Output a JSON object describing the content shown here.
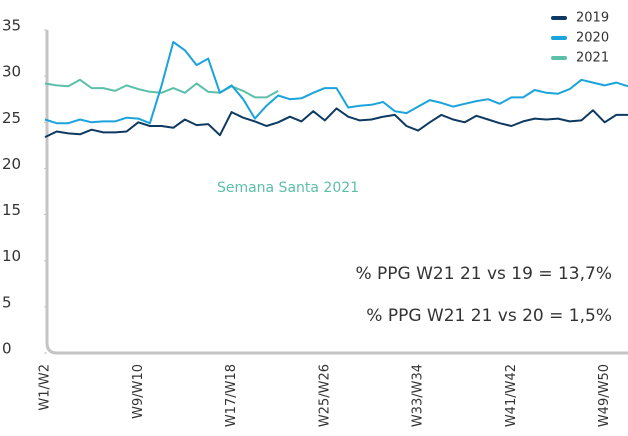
{
  "chart_data": {
    "type": "line",
    "categories": [
      "W1/W2",
      null,
      null,
      null,
      null,
      null,
      null,
      null,
      "W9/W10",
      null,
      null,
      null,
      null,
      null,
      null,
      null,
      "W17/W18",
      null,
      null,
      null,
      null,
      null,
      null,
      null,
      "W25/W26",
      null,
      null,
      null,
      null,
      null,
      null,
      null,
      "W33/W34",
      null,
      null,
      null,
      null,
      null,
      null,
      null,
      "W41/W42",
      null,
      null,
      null,
      null,
      null,
      null,
      null,
      "W49/W50",
      null,
      null
    ],
    "series": [
      {
        "name": "2019",
        "color": "#0e3a62",
        "values": [
          23.4,
          24,
          23.8,
          23.7,
          24.2,
          23.9,
          23.9,
          24,
          25,
          24.6,
          24.6,
          24.4,
          25.3,
          24.7,
          24.8,
          23.6,
          26.1,
          25.5,
          25.1,
          24.6,
          25,
          25.6,
          25.1,
          26.2,
          25.2,
          26.5,
          25.6,
          25.2,
          25.3,
          25.6,
          25.8,
          24.6,
          24.1,
          25,
          25.8,
          25.3,
          25,
          25.7,
          25.3,
          24.9,
          24.6,
          25.1,
          25.4,
          25.3,
          25.4,
          25.1,
          25.2,
          26.3,
          25,
          25.8,
          25.8
        ]
      },
      {
        "name": "2020",
        "color": "#1aa3dc",
        "values": [
          25.3,
          24.9,
          24.9,
          25.3,
          25,
          25.1,
          25.1,
          25.5,
          25.4,
          24.9,
          29,
          33.7,
          32.8,
          31.2,
          31.9,
          28.2,
          29,
          27.5,
          25.4,
          26.8,
          27.9,
          27.5,
          27.6,
          28.2,
          28.7,
          28.7,
          26.6,
          26.8,
          26.9,
          27.2,
          26.2,
          26,
          26.7,
          27.4,
          27.1,
          26.7,
          27,
          27.3,
          27.5,
          27,
          27.7,
          27.7,
          28.5,
          28.2,
          28.1,
          28.6,
          29.6,
          29.3,
          29,
          29.3,
          28.9
        ]
      },
      {
        "name": "2021",
        "color": "#5cbfa9",
        "values": [
          29.2,
          29,
          28.9,
          29.6,
          28.7,
          28.7,
          28.4,
          29,
          28.6,
          28.3,
          28.2,
          28.7,
          28.2,
          29.2,
          28.3,
          28.2,
          28.9,
          28.4,
          27.7,
          27.7,
          28.4,
          null,
          null,
          null,
          null,
          null,
          null,
          null,
          null,
          null,
          null,
          null,
          null,
          null,
          null,
          null,
          null,
          null,
          null,
          null,
          null,
          null,
          null,
          null,
          null,
          null,
          null,
          null,
          null,
          null,
          null
        ]
      }
    ],
    "ylim": [
      0,
      35
    ],
    "yticks": [
      0,
      5,
      10,
      15,
      20,
      25,
      30,
      35
    ],
    "legend": "top-right",
    "annotations": [
      "Semana Santa 2021",
      "% PPG W21 21 vs 19 = 13,7%",
      "% PPG W21 21 vs 20 = 1,5%"
    ]
  }
}
